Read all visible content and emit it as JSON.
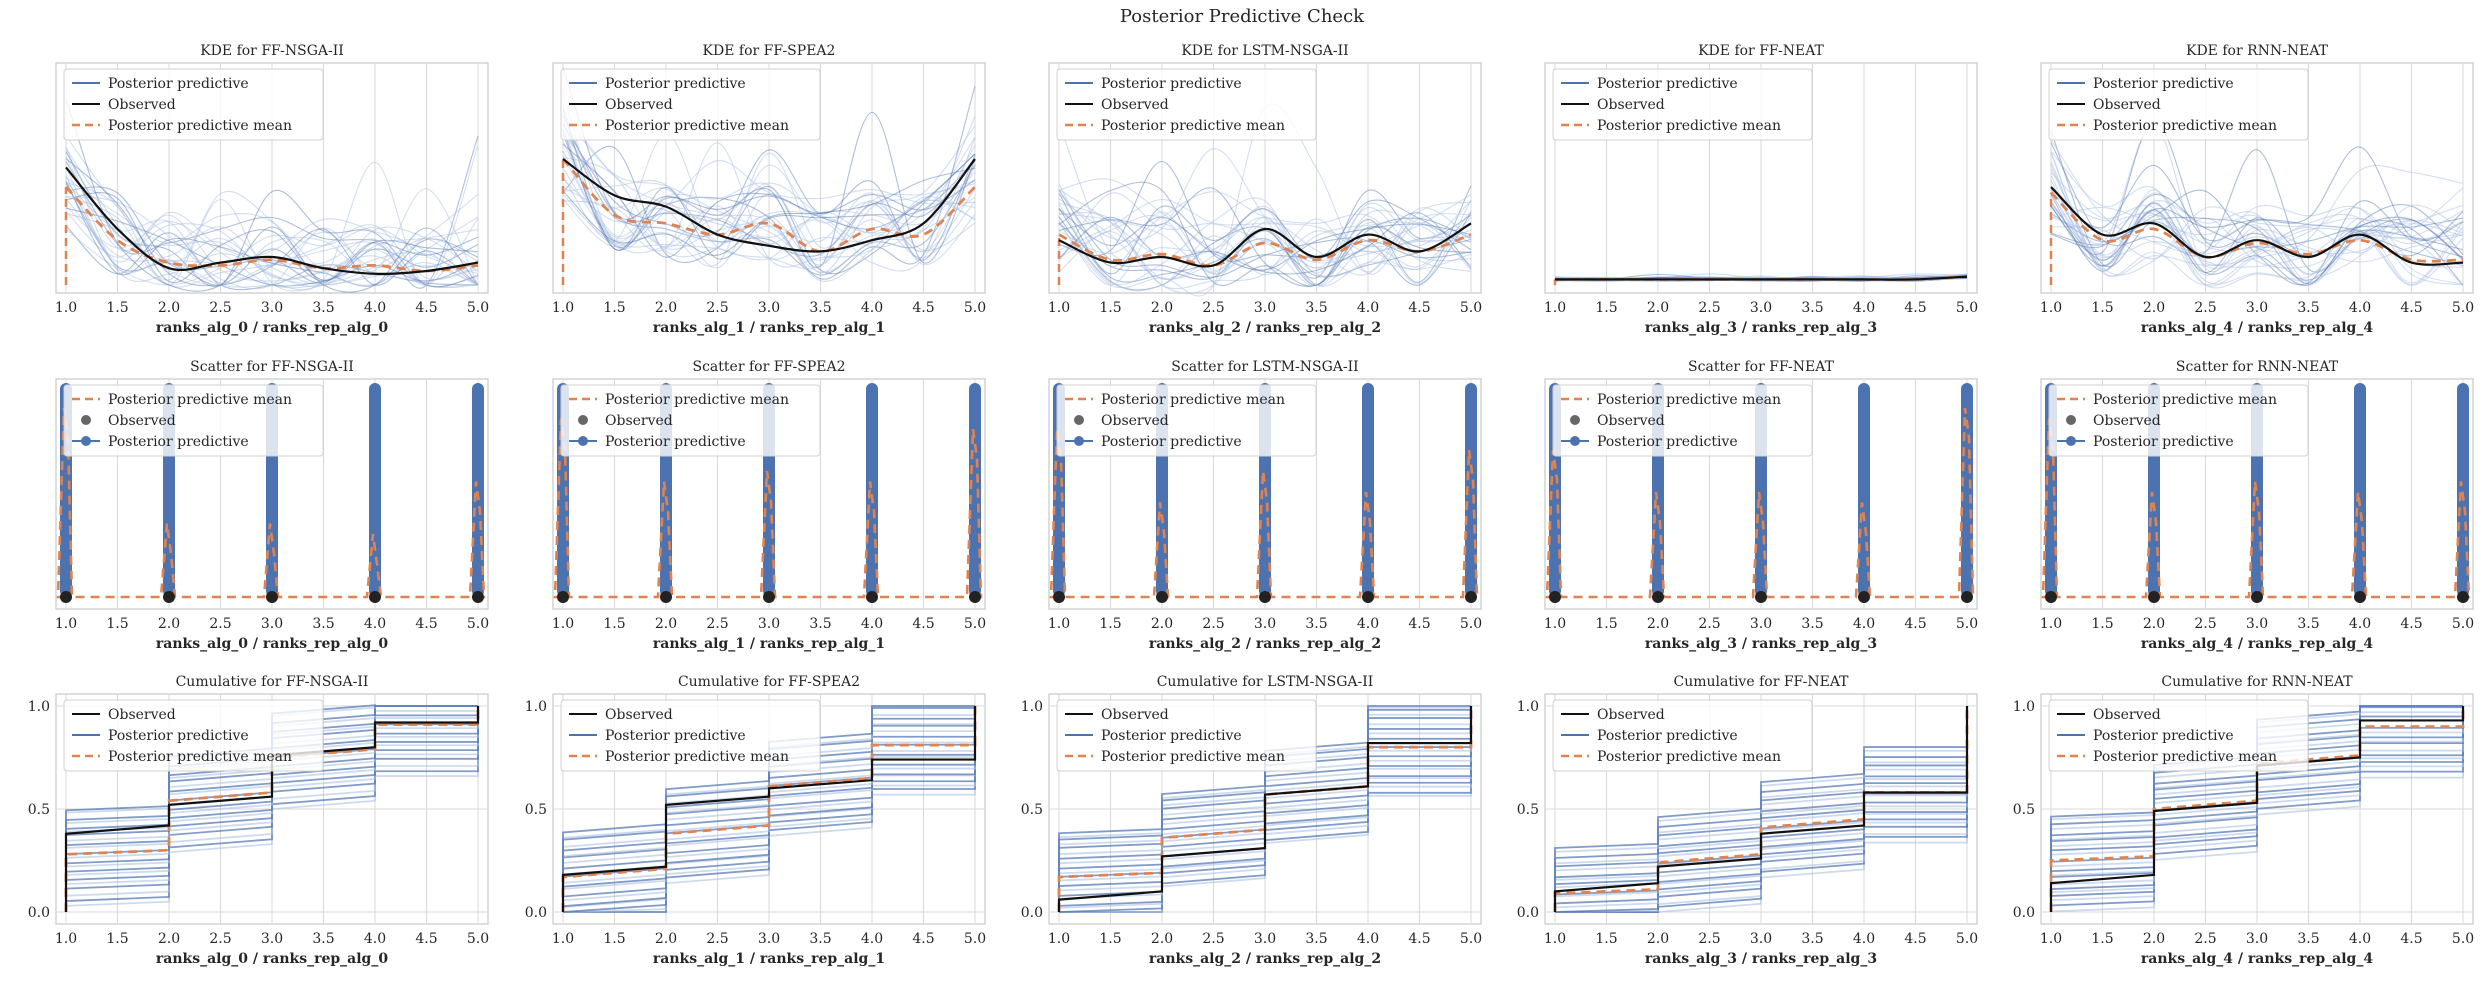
{
  "figure": {
    "title": "Posterior Predictive Check"
  },
  "colors": {
    "posterior": "#4c72b0",
    "posterior_light": "#aec3e3",
    "observed": "#111111",
    "mean": "#dd8452",
    "grid": "#d9d9d9",
    "frame": "#c8c8c8"
  },
  "legend_labels": {
    "posterior": "Posterior predictive",
    "observed": "Observed",
    "mean": "Posterior predictive mean"
  },
  "x_ticks": [
    "1.0",
    "1.5",
    "2.0",
    "2.5",
    "3.0",
    "3.5",
    "4.0",
    "4.5",
    "5.0"
  ],
  "cum_y_ticks": [
    "0.0",
    "0.5",
    "1.0"
  ],
  "chart_data": [
    {
      "type": "line",
      "kind": "kde",
      "title": "KDE for FF-NSGA-II",
      "xlabel": "ranks_alg_0 / ranks_rep_alg_0",
      "xlim": [
        1,
        5
      ],
      "legend": "upper-left",
      "x": [
        1,
        1.5,
        2,
        2.5,
        3,
        3.5,
        4,
        4.5,
        5
      ],
      "observed": [
        0.42,
        0.2,
        0.06,
        0.08,
        0.1,
        0.06,
        0.04,
        0.05,
        0.08
      ],
      "posterior_mean": [
        0.35,
        0.16,
        0.08,
        0.07,
        0.09,
        0.06,
        0.07,
        0.05,
        0.07
      ]
    },
    {
      "type": "line",
      "kind": "kde",
      "title": "KDE for FF-SPEA2",
      "xlabel": "ranks_alg_1 / ranks_rep_alg_1",
      "xlim": [
        1,
        5
      ],
      "legend": "upper-left",
      "x": [
        1,
        1.5,
        2,
        2.5,
        3,
        3.5,
        4,
        4.5,
        5
      ],
      "observed": [
        0.45,
        0.32,
        0.28,
        0.18,
        0.14,
        0.12,
        0.16,
        0.22,
        0.45
      ],
      "posterior_mean": [
        0.45,
        0.25,
        0.22,
        0.18,
        0.22,
        0.12,
        0.2,
        0.18,
        0.35
      ]
    },
    {
      "type": "line",
      "kind": "kde",
      "title": "KDE for LSTM-NSGA-II",
      "xlabel": "ranks_alg_2 / ranks_rep_alg_2",
      "xlim": [
        1,
        5
      ],
      "legend": "upper-left",
      "x": [
        1,
        1.5,
        2,
        2.5,
        3,
        3.5,
        4,
        4.5,
        5
      ],
      "observed": [
        0.16,
        0.08,
        0.1,
        0.07,
        0.2,
        0.1,
        0.18,
        0.12,
        0.22
      ],
      "posterior_mean": [
        0.18,
        0.09,
        0.11,
        0.07,
        0.15,
        0.09,
        0.16,
        0.12,
        0.18
      ]
    },
    {
      "type": "line",
      "kind": "kde",
      "title": "KDE for FF-NEAT",
      "xlabel": "ranks_alg_3 / ranks_rep_alg_3",
      "xlim": [
        1,
        5
      ],
      "legend": "upper-left",
      "x": [
        1,
        1.5,
        2,
        2.5,
        3,
        3.5,
        4,
        4.5,
        5
      ],
      "observed": [
        0.02,
        0.02,
        0.02,
        0.02,
        0.02,
        0.02,
        0.02,
        0.02,
        0.03
      ],
      "posterior_mean": [
        0.02,
        0.02,
        0.02,
        0.02,
        0.02,
        0.02,
        0.02,
        0.02,
        0.03
      ]
    },
    {
      "type": "line",
      "kind": "kde",
      "title": "KDE for RNN-NEAT",
      "xlabel": "ranks_alg_4 / ranks_rep_alg_4",
      "xlim": [
        1,
        5
      ],
      "legend": "upper-left",
      "x": [
        1,
        1.5,
        2,
        2.5,
        3,
        3.5,
        4,
        4.5,
        5
      ],
      "observed": [
        0.35,
        0.18,
        0.22,
        0.1,
        0.16,
        0.1,
        0.18,
        0.08,
        0.08
      ],
      "posterior_mean": [
        0.33,
        0.16,
        0.2,
        0.1,
        0.15,
        0.11,
        0.16,
        0.09,
        0.09
      ]
    },
    {
      "type": "scatter",
      "kind": "scatter",
      "title": "Scatter for FF-NSGA-II",
      "xlabel": "ranks_alg_0 / ranks_rep_alg_0",
      "xlim": [
        1,
        5
      ],
      "legend": "upper-left",
      "points_x": [
        1,
        2,
        3,
        4,
        5
      ],
      "spike_heights": [
        0.9,
        0.35,
        0.35,
        0.3,
        0.55
      ]
    },
    {
      "type": "scatter",
      "kind": "scatter",
      "title": "Scatter for FF-SPEA2",
      "xlabel": "ranks_alg_1 / ranks_rep_alg_1",
      "xlim": [
        1,
        5
      ],
      "legend": "upper-left",
      "points_x": [
        1,
        2,
        3,
        4,
        5
      ],
      "spike_heights": [
        0.85,
        0.55,
        0.6,
        0.55,
        0.8
      ]
    },
    {
      "type": "scatter",
      "kind": "scatter",
      "title": "Scatter for LSTM-NSGA-II",
      "xlabel": "ranks_alg_2 / ranks_rep_alg_2",
      "xlim": [
        1,
        5
      ],
      "legend": "upper-left",
      "points_x": [
        1,
        2,
        3,
        4,
        5
      ],
      "spike_heights": [
        0.8,
        0.45,
        0.6,
        0.5,
        0.7
      ]
    },
    {
      "type": "scatter",
      "kind": "scatter",
      "title": "Scatter for FF-NEAT",
      "xlabel": "ranks_alg_3 / ranks_rep_alg_3",
      "xlim": [
        1,
        5
      ],
      "legend": "upper-left",
      "points_x": [
        1,
        2,
        3,
        4,
        5
      ],
      "spike_heights": [
        0.7,
        0.5,
        0.5,
        0.45,
        0.9
      ]
    },
    {
      "type": "scatter",
      "kind": "scatter",
      "title": "Scatter for RNN-NEAT",
      "xlabel": "ranks_alg_4 / ranks_rep_alg_4",
      "xlim": [
        1,
        5
      ],
      "legend": "upper-left",
      "points_x": [
        1,
        2,
        3,
        4,
        5
      ],
      "spike_heights": [
        0.85,
        0.5,
        0.55,
        0.5,
        0.55
      ]
    },
    {
      "type": "line",
      "kind": "cumulative",
      "title": "Cumulative for FF-NSGA-II",
      "xlabel": "ranks_alg_0 / ranks_rep_alg_0",
      "xlim": [
        1,
        5
      ],
      "ylim": [
        0,
        1
      ],
      "legend": "upper-left",
      "steps_x": [
        1,
        2,
        3,
        4,
        5
      ],
      "observed": [
        0.38,
        0.42,
        0.52,
        0.76,
        0.92,
        1.0
      ],
      "posterior_mean": [
        0.28,
        0.3,
        0.54,
        0.75,
        0.91,
        1.0
      ]
    },
    {
      "type": "line",
      "kind": "cumulative",
      "title": "Cumulative for FF-SPEA2",
      "xlabel": "ranks_alg_1 / ranks_rep_alg_1",
      "xlim": [
        1,
        5
      ],
      "ylim": [
        0,
        1
      ],
      "legend": "upper-left",
      "steps_x": [
        1,
        2,
        3,
        4,
        5
      ],
      "observed": [
        0.18,
        0.22,
        0.52,
        0.6,
        0.74,
        1.0
      ],
      "posterior_mean": [
        0.17,
        0.21,
        0.38,
        0.61,
        0.81,
        1.0
      ]
    },
    {
      "type": "line",
      "kind": "cumulative",
      "title": "Cumulative for LSTM-NSGA-II",
      "xlabel": "ranks_alg_2 / ranks_rep_alg_2",
      "xlim": [
        1,
        5
      ],
      "ylim": [
        0,
        1
      ],
      "legend": "upper-left",
      "steps_x": [
        1,
        2,
        3,
        4,
        5
      ],
      "observed": [
        0.06,
        0.1,
        0.27,
        0.57,
        0.82,
        1.0
      ],
      "posterior_mean": [
        0.17,
        0.19,
        0.36,
        0.57,
        0.8,
        1.0
      ]
    },
    {
      "type": "line",
      "kind": "cumulative",
      "title": "Cumulative for FF-NEAT",
      "xlabel": "ranks_alg_3 / ranks_rep_alg_3",
      "xlim": [
        1,
        5
      ],
      "ylim": [
        0,
        1
      ],
      "legend": "upper-left",
      "steps_x": [
        1,
        2,
        3,
        4,
        5
      ],
      "observed": [
        0.1,
        0.14,
        0.22,
        0.38,
        0.58,
        1.0
      ],
      "posterior_mean": [
        0.09,
        0.11,
        0.24,
        0.41,
        0.58,
        1.0
      ]
    },
    {
      "type": "line",
      "kind": "cumulative",
      "title": "Cumulative for RNN-NEAT",
      "xlabel": "ranks_alg_4 / ranks_rep_alg_4",
      "xlim": [
        1,
        5
      ],
      "ylim": [
        0,
        1
      ],
      "legend": "upper-left",
      "steps_x": [
        1,
        2,
        3,
        4,
        5
      ],
      "observed": [
        0.14,
        0.18,
        0.49,
        0.71,
        0.93,
        1.0
      ],
      "posterior_mean": [
        0.25,
        0.27,
        0.5,
        0.72,
        0.9,
        1.0
      ]
    }
  ]
}
